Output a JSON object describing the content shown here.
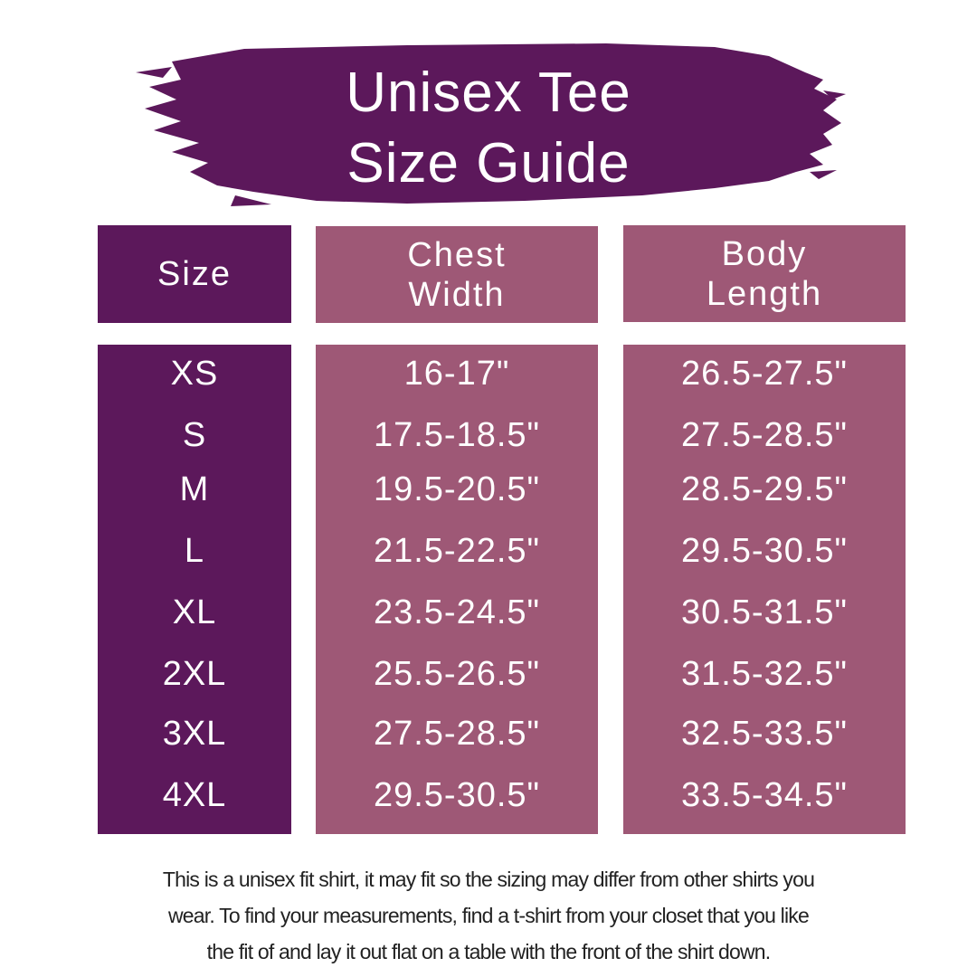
{
  "title": {
    "line1": "Unisex Tee",
    "line2": "Size Guide"
  },
  "colors": {
    "dark_purple": "#5c185b",
    "mauve": "#9e5876",
    "text": "#ffffff"
  },
  "table": {
    "headers": [
      "Size",
      "Chest\nWidth",
      "Body\nLength"
    ],
    "rows": [
      {
        "size": "XS",
        "chest": "16-17\"",
        "length": "26.5-27.5\""
      },
      {
        "size": "S",
        "chest": "17.5-18.5\"",
        "length": "27.5-28.5\""
      },
      {
        "size": "M",
        "chest": "19.5-20.5\"",
        "length": "28.5-29.5\""
      },
      {
        "size": "L",
        "chest": "21.5-22.5\"",
        "length": "29.5-30.5\""
      },
      {
        "size": "XL",
        "chest": "23.5-24.5\"",
        "length": "30.5-31.5\""
      },
      {
        "size": "2XL",
        "chest": "25.5-26.5\"",
        "length": "31.5-32.5\""
      },
      {
        "size": "3XL",
        "chest": "27.5-28.5\"",
        "length": "32.5-33.5\""
      },
      {
        "size": "4XL",
        "chest": "29.5-30.5\"",
        "length": "33.5-34.5\""
      }
    ]
  },
  "footer": {
    "line1": "This is a unisex fit shirt, it may fit so the sizing may differ from other shirts you",
    "line2": "wear. To find your measurements, find a t-shirt from your closet that you like",
    "line3": "the fit of and lay it out flat on a table with the front of the shirt down."
  }
}
